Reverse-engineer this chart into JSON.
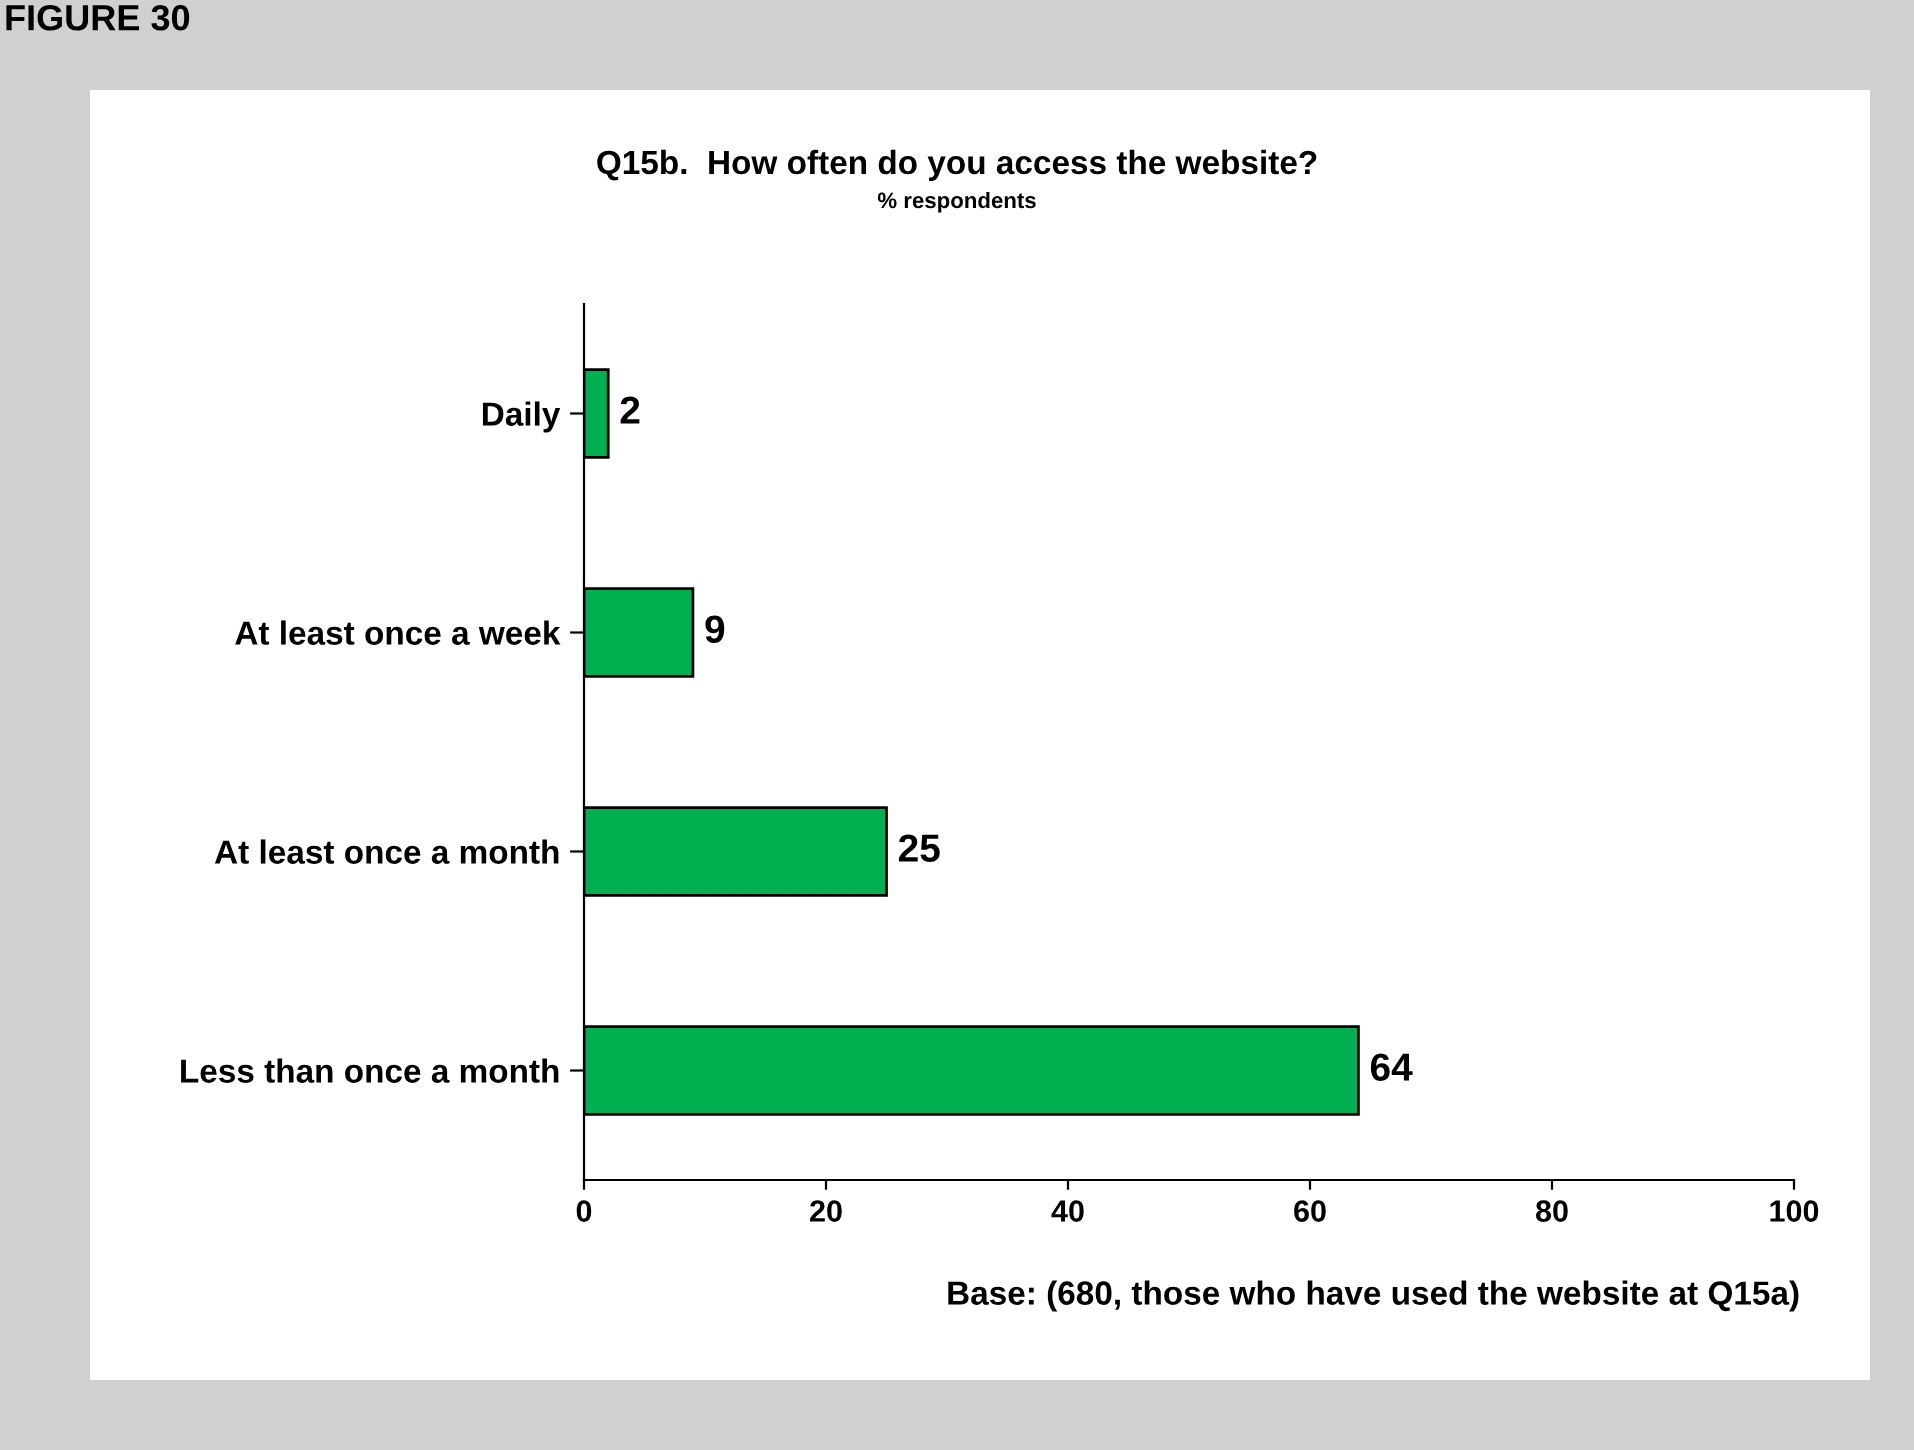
{
  "chart_data": {
    "type": "bar",
    "orientation": "horizontal",
    "title": "Q15b.  How often do you access the website?",
    "subtitle": "% respondents",
    "categories": [
      "Daily",
      "At least once a week",
      "At least once a month",
      "Less than once a month"
    ],
    "values": [
      2,
      9,
      25,
      64
    ],
    "color": "#00b050",
    "data_labels": true,
    "xlim": [
      0,
      100
    ],
    "xticks": [
      0,
      20,
      40,
      60,
      80,
      100
    ],
    "grid": false,
    "legend": false,
    "annotations": [
      "FIGURE 30",
      "Base: (680, those who have used the website at Q15a)"
    ]
  }
}
